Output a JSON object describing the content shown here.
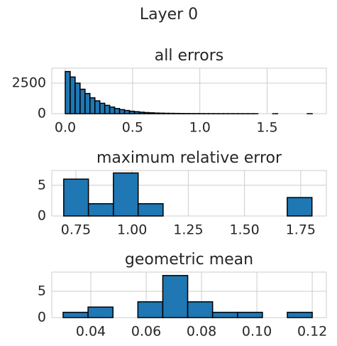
{
  "title": "Layer 0",
  "chart_data": [
    {
      "type": "histogram",
      "title": "all errors",
      "bins": [
        0,
        0.0367,
        0.0734,
        0.1101,
        0.1468,
        0.1835,
        0.2202,
        0.2569,
        0.2936,
        0.3303,
        0.367,
        0.4037,
        0.4404,
        0.4771,
        0.5138,
        0.5505,
        0.5872,
        0.6239,
        0.6606,
        0.6973,
        0.734,
        0.7707,
        0.8074,
        0.8441,
        0.8808,
        0.9175,
        0.9542,
        0.9909,
        1.0276,
        1.0643,
        1.101,
        1.1377,
        1.1744,
        1.2111,
        1.2478,
        1.2845,
        1.3212,
        1.3579,
        1.3946,
        1.4313,
        1.468,
        1.5047,
        1.5414,
        1.5781,
        1.6148,
        1.6515,
        1.6882,
        1.7249,
        1.7616,
        1.7983,
        1.835
      ],
      "values": [
        3450,
        3000,
        2500,
        2000,
        1650,
        1300,
        1050,
        850,
        680,
        540,
        420,
        330,
        260,
        200,
        160,
        120,
        90,
        70,
        50,
        40,
        30,
        25,
        20,
        15,
        12,
        10,
        8,
        6,
        5,
        4,
        3,
        3,
        2,
        2,
        1,
        1,
        1,
        1,
        1,
        0,
        0,
        0,
        1,
        0,
        0,
        0,
        0,
        0,
        0,
        1
      ],
      "xlim": [
        -0.1,
        1.94
      ],
      "ylim": [
        0,
        3720
      ],
      "xticks": [
        {
          "value": 0,
          "label": "0.0"
        },
        0.5,
        {
          "value": 1,
          "label": "1.0"
        },
        1.5
      ],
      "yticks": [
        0,
        2500
      ],
      "color": "#1f77b4",
      "edgecolor": "#000000",
      "grid": true
    },
    {
      "type": "histogram",
      "title": "maximum relative error",
      "bins": [
        0.696,
        0.806,
        0.917,
        1.027,
        1.138,
        1.248,
        1.358,
        1.469,
        1.579,
        1.69,
        1.8
      ],
      "values": [
        6,
        2,
        7,
        2,
        0,
        0,
        0,
        0,
        0,
        3
      ],
      "xlim": [
        0.643,
        1.864
      ],
      "ylim": [
        0,
        7.4
      ],
      "xticks": [
        0.75,
        {
          "value": 1,
          "label": "1.00"
        },
        1.25,
        {
          "value": 1.5,
          "label": "1.50"
        },
        1.75
      ],
      "yticks": [
        0,
        5
      ],
      "color": "#1f77b4",
      "edgecolor": "#000000",
      "grid": true
    },
    {
      "type": "histogram",
      "title": "geometric mean",
      "bins": [
        0.03,
        0.039,
        0.048,
        0.057,
        0.066,
        0.075,
        0.084,
        0.093,
        0.102,
        0.111,
        0.12
      ],
      "values": [
        1,
        2,
        0,
        3,
        8,
        3,
        1,
        1,
        0,
        1
      ],
      "xlim": [
        0.0259,
        0.1251
      ],
      "ylim": [
        0,
        8.65
      ],
      "xticks": [
        0.04,
        0.06,
        0.08,
        {
          "value": 0.1,
          "label": "0.10"
        },
        0.12
      ],
      "yticks": [
        0,
        5
      ],
      "color": "#1f77b4",
      "edgecolor": "#000000",
      "grid": true
    }
  ]
}
